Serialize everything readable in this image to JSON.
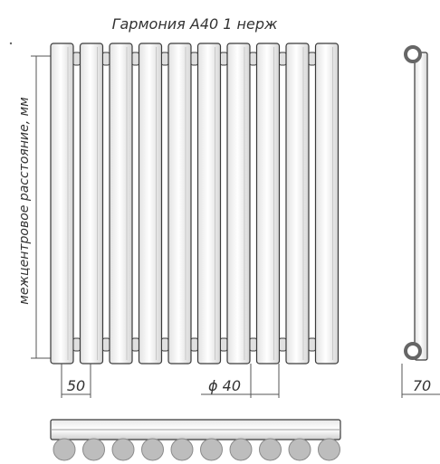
{
  "title": "Гармония А40 1 нерж",
  "side_label": "межцентровое расстояние, мм",
  "dimensions": {
    "pitch": "50",
    "diameter": "ϕ 40",
    "depth": "70"
  },
  "tube_count": 10,
  "colors": {
    "line": "#3a3a3a",
    "dim_line": "#555555",
    "tube_fill": "#f4f4f4",
    "section_fill": "#bdbdbd"
  }
}
